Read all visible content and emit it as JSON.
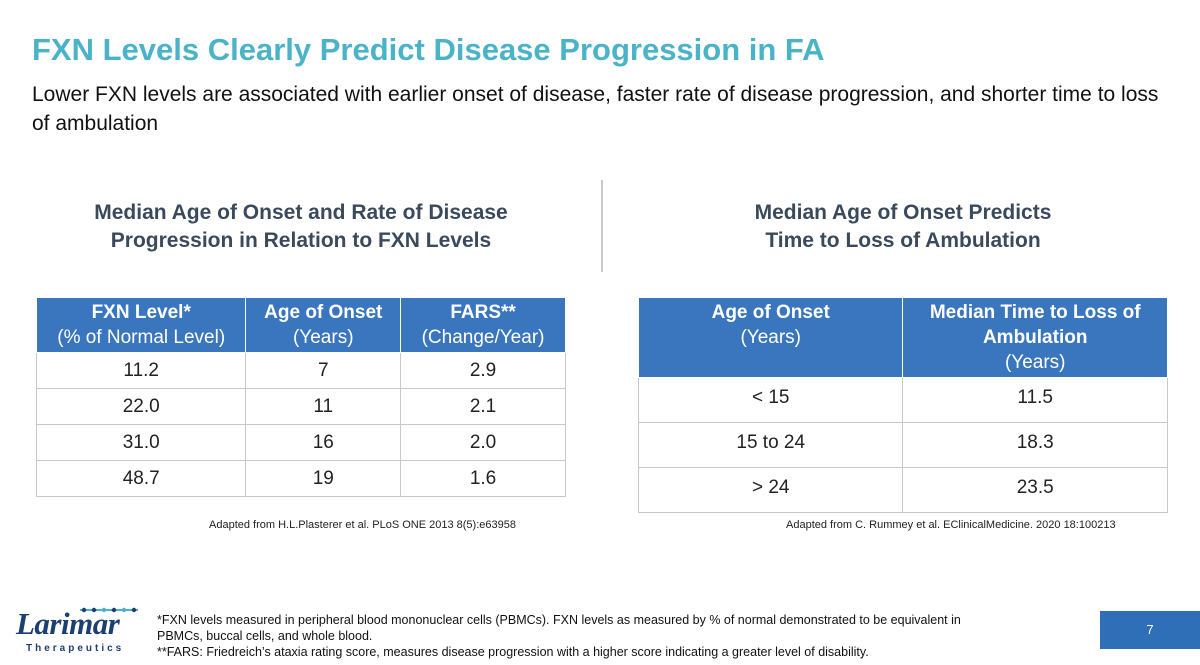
{
  "slide": {
    "title": "FXN Levels Clearly Predict Disease Progression in FA",
    "subtitle": "Lower FXN levels are associated with earlier onset of disease, faster rate of disease progression, and shorter time to loss of ambulation",
    "page_number": "7"
  },
  "left_panel": {
    "title_line1": "Median Age of Onset and Rate of Disease",
    "title_line2": "Progression in Relation to FXN Levels",
    "headers": [
      {
        "bold": "FXN Level*",
        "sub": "(% of Normal Level)"
      },
      {
        "bold": "Age of Onset",
        "sub": "(Years)"
      },
      {
        "bold": "FARS**",
        "sub": "(Change/Year)"
      }
    ],
    "rows": [
      [
        "11.2",
        "7",
        "2.9"
      ],
      [
        "22.0",
        "11",
        "2.1"
      ],
      [
        "31.0",
        "16",
        "2.0"
      ],
      [
        "48.7",
        "19",
        "1.6"
      ]
    ],
    "source": "Adapted from H.L.Plasterer et al. PLoS ONE 2013 8(5):e63958"
  },
  "right_panel": {
    "title_line1": "Median Age of Onset Predicts",
    "title_line2": "Time to Loss of Ambulation",
    "headers": [
      {
        "bold": "Age of Onset",
        "sub": "(Years)"
      },
      {
        "bold": "Median Time to Loss of Ambulation",
        "sub": "(Years)"
      }
    ],
    "rows": [
      [
        "< 15",
        "11.5"
      ],
      [
        "15 to 24",
        "18.3"
      ],
      [
        "> 24",
        "23.5"
      ]
    ],
    "source": "Adapted from C. Rummey et al. EClinicalMedicine. 2020 18:100213"
  },
  "footer": {
    "logo_word": "Larimar",
    "logo_sub": "Therapeutics",
    "note1": "*FXN levels measured in peripheral blood mononuclear cells (PBMCs). FXN levels as measured by % of normal demonstrated to be equivalent in PBMCs, buccal cells, and whole blood.",
    "note2": "**FARS: Friedreich’s ataxia rating score, measures disease progression with a higher score indicating a greater level of disability."
  },
  "colors": {
    "title": "#4bb3c8",
    "table_header": "#3a76bd",
    "brand_navy": "#1c3f73",
    "page_box": "#2f6fb7"
  }
}
